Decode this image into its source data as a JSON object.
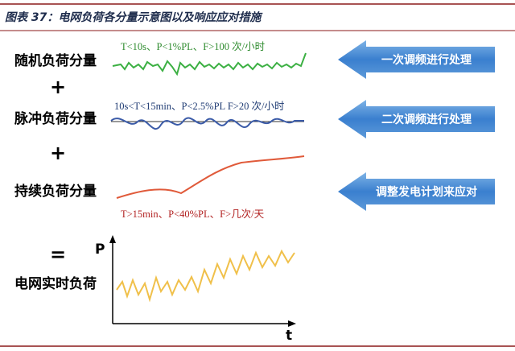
{
  "header": {
    "title": "图表 37：电网负荷各分量示意图以及响应应对措施"
  },
  "components": [
    {
      "label": "随机负荷分量",
      "annotation": "T<10s、P<1%PL、F>100 次/小时",
      "action": "一次调频进行处理"
    },
    {
      "label": "脉冲负荷分量",
      "annotation": "10s<T<15min、P<2.5%PL F>20 次/小时",
      "action": "二次调频进行处理"
    },
    {
      "label": "持续负荷分量",
      "annotation": "T>15min、P<40%PL、F>几次/天",
      "action": "调整发电计划来应对"
    }
  ],
  "operators": [
    "+",
    "+",
    "="
  ],
  "result": {
    "label": "电网实时负荷",
    "y_axis": "P",
    "x_axis": "t"
  }
}
